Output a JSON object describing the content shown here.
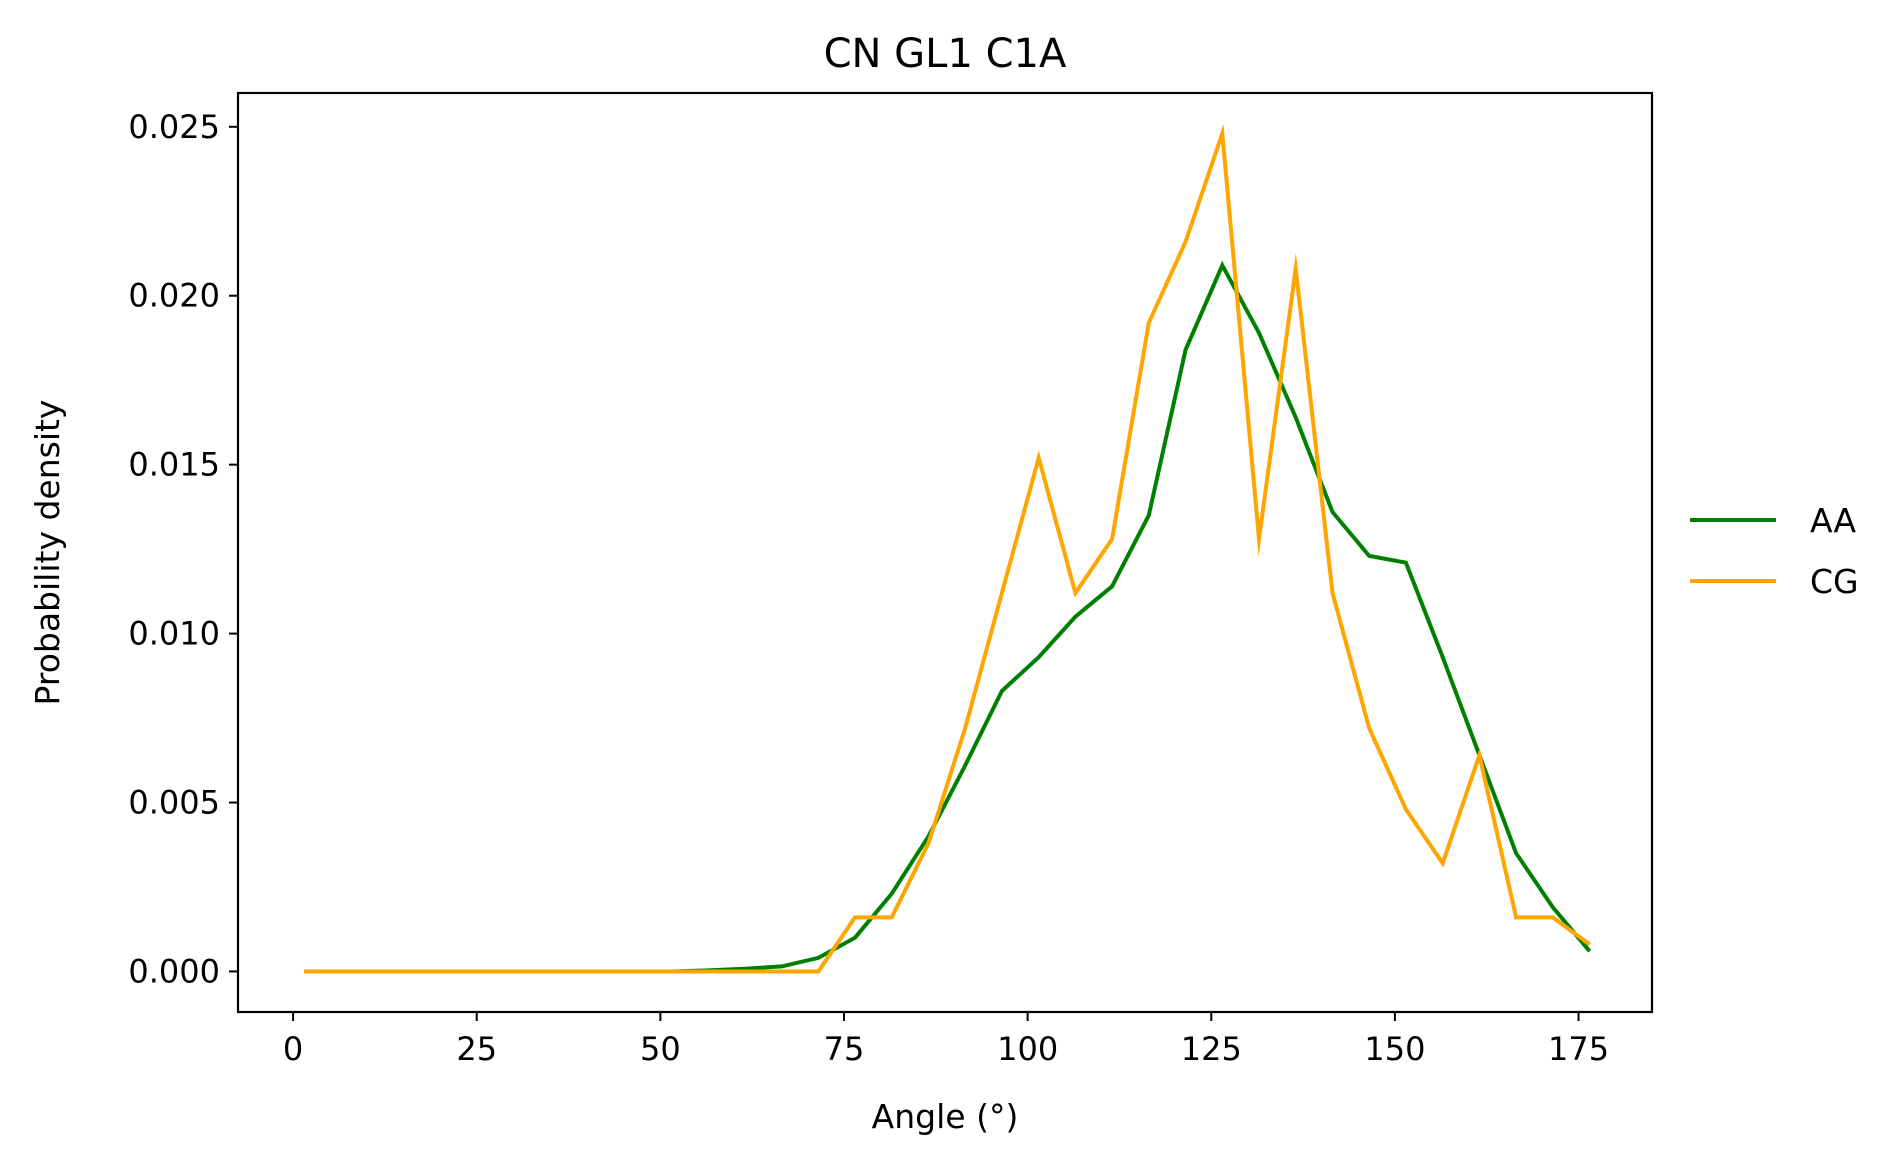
{
  "chart_data": {
    "type": "line",
    "title": "CN GL1 C1A",
    "xlabel": "Angle (°)",
    "ylabel": "Probability density",
    "xlim": [
      -7.5,
      185
    ],
    "ylim": [
      -0.0012,
      0.026
    ],
    "x_ticks": [
      0,
      25,
      50,
      75,
      100,
      125,
      150,
      175
    ],
    "x_tick_labels": [
      "0",
      "25",
      "50",
      "75",
      "100",
      "125",
      "150",
      "175"
    ],
    "y_ticks": [
      0.0,
      0.005,
      0.01,
      0.015,
      0.02,
      0.025
    ],
    "y_tick_labels": [
      "0.000",
      "0.005",
      "0.010",
      "0.015",
      "0.020",
      "0.025"
    ],
    "grid": false,
    "legend_position": "outside-right",
    "x": [
      1.5,
      6.5,
      11.5,
      16.5,
      21.5,
      26.5,
      31.5,
      36.5,
      41.5,
      46.5,
      51.5,
      56.5,
      61.5,
      66.5,
      71.5,
      76.5,
      81.5,
      86.5,
      91.5,
      96.5,
      101.5,
      106.5,
      111.5,
      116.5,
      121.5,
      126.5,
      131.5,
      136.5,
      141.5,
      146.5,
      151.5,
      156.5,
      161.5,
      166.5,
      171.5,
      176.5
    ],
    "series": [
      {
        "name": "AA",
        "color": "#008000",
        "values": [
          0,
          0,
          0,
          0,
          0,
          0,
          0,
          0,
          0,
          0,
          0,
          3e-05,
          8e-05,
          0.00015,
          0.0004,
          0.001,
          0.0023,
          0.004,
          0.0061,
          0.0083,
          0.0093,
          0.0105,
          0.0114,
          0.0135,
          0.0184,
          0.0209,
          0.0189,
          0.0164,
          0.0136,
          0.0123,
          0.0121,
          0.0093,
          0.0064,
          0.0035,
          0.0019,
          0.0006
        ]
      },
      {
        "name": "CG",
        "color": "#FFA500",
        "values": [
          0,
          0,
          0,
          0,
          0,
          0,
          0,
          0,
          0,
          0,
          0,
          0,
          0,
          0,
          0,
          0.0016,
          0.0016,
          0.0038,
          0.0072,
          0.0112,
          0.0152,
          0.0112,
          0.0128,
          0.0192,
          0.0216,
          0.0248,
          0.0128,
          0.0208,
          0.0112,
          0.0072,
          0.0048,
          0.0032,
          0.0064,
          0.0016,
          0.0016,
          0.0008
        ]
      }
    ]
  }
}
